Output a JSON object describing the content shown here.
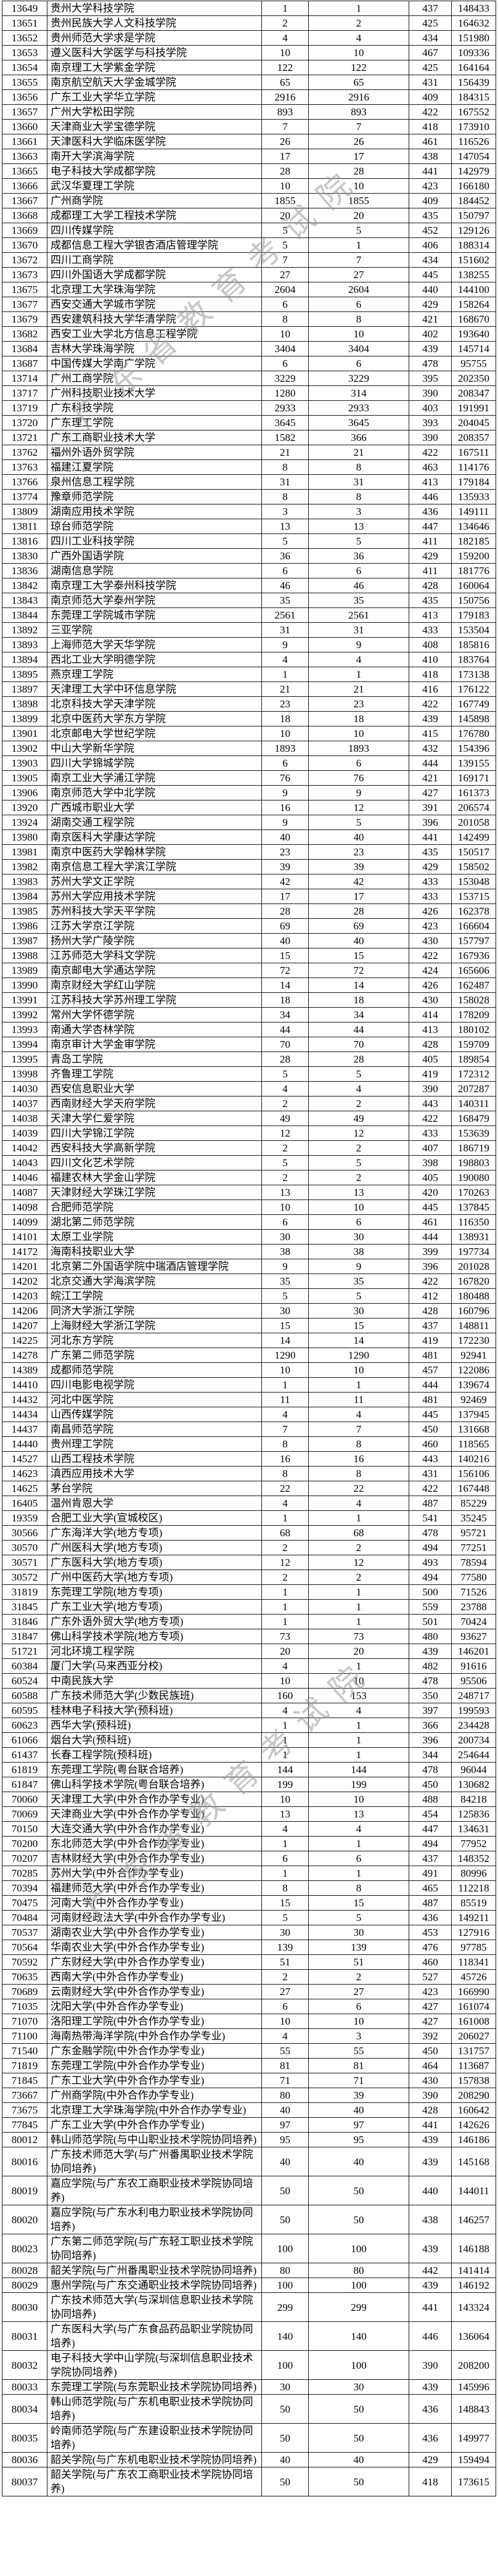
{
  "watermark": {
    "text": "广东省教育考试院",
    "color": "#9a9a9a"
  },
  "table": {
    "rows": [
      [
        "13649",
        "贵州大学科技学院",
        "1",
        "1",
        "437",
        "148433"
      ],
      [
        "13651",
        "贵州民族大学人文科技学院",
        "2",
        "2",
        "425",
        "164632"
      ],
      [
        "13652",
        "贵州师范大学求是学院",
        "4",
        "4",
        "434",
        "151980"
      ],
      [
        "13653",
        "遵义医科大学医学与科技学院",
        "10",
        "10",
        "467",
        "109336"
      ],
      [
        "13654",
        "南京理工大学紫金学院",
        "122",
        "122",
        "425",
        "164164"
      ],
      [
        "13655",
        "南京航空航天大学金城学院",
        "65",
        "65",
        "431",
        "156439"
      ],
      [
        "13656",
        "广东工业大学华立学院",
        "2916",
        "2916",
        "409",
        "184315"
      ],
      [
        "13657",
        "广州大学松田学院",
        "893",
        "893",
        "422",
        "167552"
      ],
      [
        "13660",
        "天津商业大学宝德学院",
        "7",
        "7",
        "418",
        "173910"
      ],
      [
        "13661",
        "天津医科大学临床医学院",
        "26",
        "26",
        "461",
        "116526"
      ],
      [
        "13663",
        "南开大学滨海学院",
        "17",
        "17",
        "438",
        "147054"
      ],
      [
        "13665",
        "电子科技大学成都学院",
        "28",
        "28",
        "441",
        "142979"
      ],
      [
        "13666",
        "武汉华夏理工学院",
        "10",
        "10",
        "423",
        "166180"
      ],
      [
        "13667",
        "广州商学院",
        "1855",
        "1855",
        "409",
        "184452"
      ],
      [
        "13668",
        "成都理工大学工程技术学院",
        "20",
        "20",
        "435",
        "150797"
      ],
      [
        "13669",
        "四川传媒学院",
        "5",
        "5",
        "452",
        "129126"
      ],
      [
        "13670",
        "成都信息工程大学银杏酒店管理学院",
        "5",
        "1",
        "406",
        "188314"
      ],
      [
        "13672",
        "四川工商学院",
        "7",
        "7",
        "434",
        "151602"
      ],
      [
        "13673",
        "四川外国语大学成都学院",
        "27",
        "27",
        "445",
        "138255"
      ],
      [
        "13675",
        "北京理工大学珠海学院",
        "2604",
        "2604",
        "440",
        "144100"
      ],
      [
        "13677",
        "西安交通大学城市学院",
        "6",
        "6",
        "429",
        "158264"
      ],
      [
        "13679",
        "西安建筑科技大学华清学院",
        "8",
        "8",
        "421",
        "168670"
      ],
      [
        "13682",
        "西安工业大学北方信息工程学院",
        "10",
        "10",
        "402",
        "193640"
      ],
      [
        "13684",
        "吉林大学珠海学院",
        "3404",
        "3404",
        "439",
        "145714"
      ],
      [
        "13687",
        "中国传媒大学南广学院",
        "6",
        "6",
        "478",
        "95755"
      ],
      [
        "13714",
        "广州工商学院",
        "3229",
        "3229",
        "395",
        "202350"
      ],
      [
        "13717",
        "广州科技职业技术大学",
        "1280",
        "314",
        "390",
        "208347"
      ],
      [
        "13719",
        "广东科技学院",
        "2933",
        "2933",
        "403",
        "191991"
      ],
      [
        "13720",
        "广东理工学院",
        "3645",
        "3645",
        "393",
        "204045"
      ],
      [
        "13721",
        "广东工商职业技术大学",
        "1582",
        "366",
        "390",
        "208357"
      ],
      [
        "13762",
        "福州外语外贸学院",
        "21",
        "21",
        "422",
        "167511"
      ],
      [
        "13763",
        "福建江夏学院",
        "8",
        "8",
        "463",
        "114176"
      ],
      [
        "13766",
        "泉州信息工程学院",
        "31",
        "31",
        "413",
        "179184"
      ],
      [
        "13774",
        "豫章师范学院",
        "8",
        "8",
        "446",
        "135933"
      ],
      [
        "13809",
        "湖南应用技术学院",
        "3",
        "3",
        "436",
        "149111"
      ],
      [
        "13811",
        "琼台师范学院",
        "13",
        "13",
        "447",
        "134646"
      ],
      [
        "13816",
        "四川工业科技学院",
        "5",
        "5",
        "411",
        "182185"
      ],
      [
        "13830",
        "广西外国语学院",
        "36",
        "36",
        "429",
        "159200"
      ],
      [
        "13836",
        "湖南信息学院",
        "6",
        "6",
        "411",
        "181776"
      ],
      [
        "13842",
        "南京理工大学泰州科技学院",
        "46",
        "46",
        "428",
        "160064"
      ],
      [
        "13843",
        "南京师范大学泰州学院",
        "35",
        "35",
        "435",
        "150756"
      ],
      [
        "13844",
        "东莞理工学院城市学院",
        "2561",
        "2561",
        "413",
        "179183"
      ],
      [
        "13892",
        "三亚学院",
        "31",
        "31",
        "433",
        "153504"
      ],
      [
        "13893",
        "上海师范大学天华学院",
        "9",
        "9",
        "408",
        "185816"
      ],
      [
        "13894",
        "西北工业大学明德学院",
        "4",
        "4",
        "410",
        "183764"
      ],
      [
        "13895",
        "燕京理工学院",
        "1",
        "1",
        "418",
        "173138"
      ],
      [
        "13897",
        "天津理工大学中环信息学院",
        "21",
        "21",
        "416",
        "176122"
      ],
      [
        "13898",
        "北京科技大学天津学院",
        "23",
        "23",
        "422",
        "167749"
      ],
      [
        "13899",
        "北京中医药大学东方学院",
        "18",
        "18",
        "439",
        "145898"
      ],
      [
        "13901",
        "北京邮电大学世纪学院",
        "10",
        "10",
        "415",
        "176780"
      ],
      [
        "13902",
        "中山大学新华学院",
        "1893",
        "1893",
        "432",
        "154396"
      ],
      [
        "13903",
        "四川大学锦城学院",
        "6",
        "6",
        "444",
        "139155"
      ],
      [
        "13905",
        "南京工业大学浦江学院",
        "76",
        "76",
        "421",
        "169171"
      ],
      [
        "13906",
        "南京师范大学中北学院",
        "9",
        "9",
        "427",
        "161373"
      ],
      [
        "13920",
        "广西城市职业大学",
        "16",
        "12",
        "391",
        "206574"
      ],
      [
        "13924",
        "湖南交通工程学院",
        "9",
        "5",
        "396",
        "201058"
      ],
      [
        "13980",
        "南京医科大学康达学院",
        "40",
        "40",
        "441",
        "142499"
      ],
      [
        "13981",
        "南京中医药大学翰林学院",
        "23",
        "23",
        "435",
        "150517"
      ],
      [
        "13982",
        "南京信息工程大学滨江学院",
        "39",
        "39",
        "429",
        "158502"
      ],
      [
        "13983",
        "苏州大学文正学院",
        "42",
        "42",
        "433",
        "153048"
      ],
      [
        "13984",
        "苏州大学应用技术学院",
        "17",
        "17",
        "433",
        "153715"
      ],
      [
        "13985",
        "苏州科技大学天平学院",
        "28",
        "28",
        "426",
        "162378"
      ],
      [
        "13986",
        "江苏大学京江学院",
        "69",
        "69",
        "423",
        "166604"
      ],
      [
        "13987",
        "扬州大学广陵学院",
        "40",
        "40",
        "430",
        "157797"
      ],
      [
        "13988",
        "江苏师范大学科文学院",
        "15",
        "15",
        "422",
        "167936"
      ],
      [
        "13989",
        "南京邮电大学通达学院",
        "72",
        "72",
        "424",
        "165606"
      ],
      [
        "13990",
        "南京财经大学红山学院",
        "14",
        "14",
        "426",
        "162487"
      ],
      [
        "13991",
        "江苏科技大学苏州理工学院",
        "18",
        "18",
        "430",
        "158028"
      ],
      [
        "13992",
        "常州大学怀德学院",
        "34",
        "34",
        "414",
        "178209"
      ],
      [
        "13993",
        "南通大学杏林学院",
        "44",
        "44",
        "413",
        "180102"
      ],
      [
        "13994",
        "南京审计大学金审学院",
        "70",
        "70",
        "428",
        "159709"
      ],
      [
        "13995",
        "青岛工学院",
        "28",
        "28",
        "405",
        "189854"
      ],
      [
        "13998",
        "齐鲁理工学院",
        "5",
        "5",
        "419",
        "172312"
      ],
      [
        "14030",
        "西安信息职业大学",
        "4",
        "4",
        "390",
        "207287"
      ],
      [
        "14037",
        "西南财经大学天府学院",
        "2",
        "2",
        "443",
        "140311"
      ],
      [
        "14038",
        "天津大学仁爱学院",
        "49",
        "49",
        "422",
        "168479"
      ],
      [
        "14039",
        "四川大学锦江学院",
        "12",
        "12",
        "433",
        "153639"
      ],
      [
        "14042",
        "西安科技大学高新学院",
        "2",
        "2",
        "407",
        "186719"
      ],
      [
        "14043",
        "四川文化艺术学院",
        "5",
        "5",
        "398",
        "198803"
      ],
      [
        "14046",
        "福建农林大学金山学院",
        "2",
        "2",
        "405",
        "190080"
      ],
      [
        "14087",
        "天津财经大学珠江学院",
        "13",
        "13",
        "420",
        "170263"
      ],
      [
        "14098",
        "合肥师范学院",
        "10",
        "10",
        "445",
        "137845"
      ],
      [
        "14099",
        "湖北第二师范学院",
        "6",
        "6",
        "461",
        "116350"
      ],
      [
        "14101",
        "太原工业学院",
        "30",
        "30",
        "444",
        "138931"
      ],
      [
        "14172",
        "海南科技职业大学",
        "38",
        "38",
        "399",
        "197734"
      ],
      [
        "14201",
        "北京第二外国语学院中瑞酒店管理学院",
        "9",
        "9",
        "396",
        "201028"
      ],
      [
        "14202",
        "北京交通大学海滨学院",
        "35",
        "35",
        "422",
        "167820"
      ],
      [
        "14203",
        "皖江工学院",
        "5",
        "5",
        "412",
        "180488"
      ],
      [
        "14206",
        "同济大学浙江学院",
        "30",
        "30",
        "428",
        "160796"
      ],
      [
        "14207",
        "上海财经大学浙江学院",
        "15",
        "15",
        "437",
        "148811"
      ],
      [
        "14225",
        "河北东方学院",
        "14",
        "14",
        "419",
        "172230"
      ],
      [
        "14278",
        "广东第二师范学院",
        "1290",
        "1290",
        "481",
        "92941"
      ],
      [
        "14389",
        "成都师范学院",
        "10",
        "10",
        "457",
        "122086"
      ],
      [
        "14410",
        "四川电影电视学院",
        "1",
        "1",
        "444",
        "139674"
      ],
      [
        "14432",
        "河北中医学院",
        "11",
        "11",
        "481",
        "92469"
      ],
      [
        "14434",
        "山西传媒学院",
        "4",
        "4",
        "445",
        "137945"
      ],
      [
        "14437",
        "南昌师范学院",
        "7",
        "7",
        "450",
        "131668"
      ],
      [
        "14440",
        "贵州理工学院",
        "8",
        "8",
        "460",
        "118565"
      ],
      [
        "14527",
        "山西工程技术学院",
        "16",
        "16",
        "443",
        "140216"
      ],
      [
        "14623",
        "滇西应用技术大学",
        "8",
        "8",
        "431",
        "156106"
      ],
      [
        "14625",
        "茅台学院",
        "22",
        "22",
        "422",
        "167448"
      ],
      [
        "16405",
        "温州肯恩大学",
        "4",
        "4",
        "487",
        "85229"
      ],
      [
        "19359",
        "合肥工业大学(宣城校区)",
        "1",
        "1",
        "541",
        "35245"
      ],
      [
        "30566",
        "广东海洋大学(地方专项)",
        "68",
        "68",
        "478",
        "95721"
      ],
      [
        "30570",
        "广州医科大学(地方专项)",
        "2",
        "2",
        "494",
        "77251"
      ],
      [
        "30571",
        "广东医科大学(地方专项)",
        "12",
        "12",
        "493",
        "78594"
      ],
      [
        "30572",
        "广州中医药大学(地方专项)",
        "2",
        "2",
        "494",
        "77580"
      ],
      [
        "31819",
        "东莞理工学院(地方专项)",
        "1",
        "1",
        "500",
        "71526"
      ],
      [
        "31845",
        "广东工业大学(地方专项)",
        "1",
        "1",
        "559",
        "23788"
      ],
      [
        "31846",
        "广东外语外贸大学(地方专项)",
        "1",
        "1",
        "501",
        "70424"
      ],
      [
        "31847",
        "佛山科学技术学院(地方专项)",
        "73",
        "73",
        "480",
        "93627"
      ],
      [
        "51721",
        "河北环境工程学院",
        "20",
        "20",
        "439",
        "146201"
      ],
      [
        "60384",
        "厦门大学(马来西亚分校)",
        "4",
        "1",
        "482",
        "91616"
      ],
      [
        "60524",
        "中南民族大学",
        "10",
        "10",
        "478",
        "95506"
      ],
      [
        "60588",
        "广东技术师范大学(少数民族班)",
        "160",
        "153",
        "350",
        "248717"
      ],
      [
        "60595",
        "桂林电子科技大学(预科班)",
        "4",
        "4",
        "397",
        "199593"
      ],
      [
        "60623",
        "西华大学(预科班)",
        "1",
        "1",
        "366",
        "234428"
      ],
      [
        "61066",
        "烟台大学(预科班)",
        "1",
        "1",
        "396",
        "200734"
      ],
      [
        "61437",
        "长春工程学院(预科班)",
        "1",
        "1",
        "344",
        "254644"
      ],
      [
        "61819",
        "东莞理工学院(粤台联合培养)",
        "144",
        "144",
        "478",
        "96044"
      ],
      [
        "61847",
        "佛山科学技术学院(粤台联合培养)",
        "199",
        "199",
        "450",
        "130682"
      ],
      [
        "70060",
        "天津理工大学(中外合作办学专业)",
        "10",
        "10",
        "488",
        "84218"
      ],
      [
        "70069",
        "天津商业大学(中外合作办学专业)",
        "13",
        "13",
        "454",
        "125836"
      ],
      [
        "70150",
        "大连交通大学(中外合作办学专业)",
        "4",
        "4",
        "447",
        "134631"
      ],
      [
        "70200",
        "东北师范大学(中外合作办学专业)",
        "1",
        "1",
        "494",
        "77952"
      ],
      [
        "70207",
        "吉林财经大学(中外合作办学专业)",
        "6",
        "6",
        "437",
        "148352"
      ],
      [
        "70285",
        "苏州大学(中外合作办学专业)",
        "1",
        "1",
        "491",
        "80996"
      ],
      [
        "70394",
        "福建师范大学(中外合作办学专业)",
        "8",
        "8",
        "465",
        "112218"
      ],
      [
        "70475",
        "河南大学(中外合作办学专业)",
        "15",
        "15",
        "487",
        "85519"
      ],
      [
        "70484",
        "河南财经政法大学(中外合作办学专业)",
        "5",
        "5",
        "436",
        "149211"
      ],
      [
        "70537",
        "湖南农业大学(中外合作办学专业)",
        "30",
        "30",
        "453",
        "127916"
      ],
      [
        "70564",
        "华南农业大学(中外合作办学专业)",
        "139",
        "139",
        "476",
        "97785"
      ],
      [
        "70592",
        "广东财经大学(中外合作办学专业)",
        "51",
        "51",
        "460",
        "118341"
      ],
      [
        "70635",
        "西南大学(中外合作办学专业)",
        "2",
        "2",
        "527",
        "45726"
      ],
      [
        "70689",
        "云南财经大学(中外合作办学专业)",
        "27",
        "27",
        "423",
        "166990"
      ],
      [
        "71035",
        "沈阳大学(中外合作办学专业)",
        "6",
        "6",
        "427",
        "161074"
      ],
      [
        "71070",
        "洛阳理工学院(中外合作办学专业)",
        "10",
        "10",
        "427",
        "161008"
      ],
      [
        "71100",
        "海南热带海洋学院(中外合作办学专业)",
        "4",
        "3",
        "392",
        "206027"
      ],
      [
        "71540",
        "广东金融学院(中外合作办学专业)",
        "55",
        "55",
        "450",
        "131757"
      ],
      [
        "71819",
        "东莞理工学院(中外合作办学专业)",
        "81",
        "81",
        "464",
        "113687"
      ],
      [
        "71845",
        "广东工业大学(中外合作办学专业)",
        "71",
        "71",
        "430",
        "157838"
      ],
      [
        "73667",
        "广州商学院(中外合作办学专业)",
        "80",
        "39",
        "390",
        "208290"
      ],
      [
        "73675",
        "北京理工大学珠海学院(中外合作办学专业)",
        "40",
        "40",
        "428",
        "160642"
      ],
      [
        "77845",
        "广东工业大学(中外合作办学专业)",
        "97",
        "97",
        "441",
        "142626"
      ],
      [
        "80012",
        "韩山师范学院(与中山职业技术学院协同培养)",
        "95",
        "95",
        "439",
        "146186"
      ],
      [
        "80016",
        "广东技术师范大学(与广州番禺职业技术学院协同培养)",
        "40",
        "40",
        "439",
        "145168"
      ],
      [
        "80019",
        "嘉应学院(与广东农工商职业技术学院协同培养)",
        "50",
        "50",
        "440",
        "144011"
      ],
      [
        "80020",
        "嘉应学院(与广东水利电力职业技术学院协同培养)",
        "50",
        "50",
        "438",
        "146257"
      ],
      [
        "80023",
        "广东第二师范学院(与广东轻工职业技术学院协同培养)",
        "100",
        "100",
        "439",
        "146188"
      ],
      [
        "80028",
        "韶关学院(与广州番禺职业技术学院协同培养)",
        "80",
        "80",
        "442",
        "141414"
      ],
      [
        "80029",
        "惠州学院(与广东交通职业技术学院协同培养)",
        "100",
        "100",
        "439",
        "146192"
      ],
      [
        "80030",
        "广东技术师范大学(与深圳信息职业技术学院协同培养)",
        "299",
        "299",
        "441",
        "143324"
      ],
      [
        "80031",
        "广东医科大学(与广东食品药品职业学院协同培养)",
        "140",
        "140",
        "446",
        "136064"
      ],
      [
        "80032",
        "电子科技大学中山学院(与深圳信息职业技术学院协同培养)",
        "100",
        "100",
        "390",
        "208200"
      ],
      [
        "80033",
        "东莞理工学院(与东莞职业技术学院协同培养)",
        "30",
        "30",
        "439",
        "145996"
      ],
      [
        "80034",
        "韩山师范学院(与广东机电职业技术学院协同培养)",
        "50",
        "50",
        "436",
        "148843"
      ],
      [
        "80035",
        "岭南师范学院(与广东建设职业技术学院协同培养)",
        "50",
        "50",
        "436",
        "149977"
      ],
      [
        "80036",
        "韶关学院(与广东机电职业技术学院协同培养)",
        "40",
        "40",
        "429",
        "159494"
      ],
      [
        "80037",
        "韶关学院(与广东农工商职业技术学院协同培养)",
        "50",
        "50",
        "418",
        "173615"
      ]
    ]
  }
}
